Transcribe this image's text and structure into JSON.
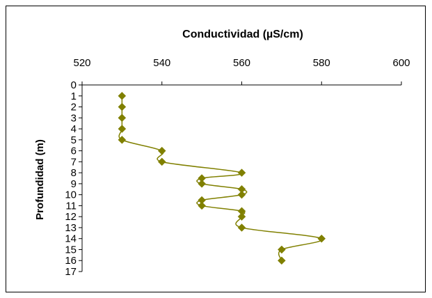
{
  "chart_data": {
    "type": "line",
    "title": "Conductividad (µS/cm)",
    "xlabel": "",
    "ylabel": "Profundidad (m)",
    "x_axis_position": "top",
    "y_axis_inverted": true,
    "xlim": [
      520,
      600
    ],
    "ylim": [
      0,
      17
    ],
    "x_ticks": [
      520,
      540,
      560,
      580,
      600
    ],
    "y_ticks": [
      0,
      1,
      2,
      3,
      4,
      5,
      6,
      7,
      8,
      9,
      10,
      11,
      12,
      13,
      14,
      15,
      16,
      17
    ],
    "grid": false,
    "legend": "none",
    "series": [
      {
        "color": "#808000",
        "marker": "diamond",
        "smooth": true,
        "points": [
          {
            "x": 530,
            "y": 1
          },
          {
            "x": 530,
            "y": 2
          },
          {
            "x": 530,
            "y": 3
          },
          {
            "x": 530,
            "y": 4
          },
          {
            "x": 530,
            "y": 5
          },
          {
            "x": 540,
            "y": 6
          },
          {
            "x": 540,
            "y": 7
          },
          {
            "x": 560,
            "y": 8
          },
          {
            "x": 550,
            "y": 8.5
          },
          {
            "x": 550,
            "y": 9
          },
          {
            "x": 560,
            "y": 9.5
          },
          {
            "x": 560,
            "y": 10
          },
          {
            "x": 550,
            "y": 10.5
          },
          {
            "x": 550,
            "y": 11
          },
          {
            "x": 560,
            "y": 11.5
          },
          {
            "x": 560,
            "y": 12
          },
          {
            "x": 560,
            "y": 13
          },
          {
            "x": 580,
            "y": 14
          },
          {
            "x": 570,
            "y": 15
          },
          {
            "x": 570,
            "y": 16
          }
        ]
      }
    ]
  }
}
